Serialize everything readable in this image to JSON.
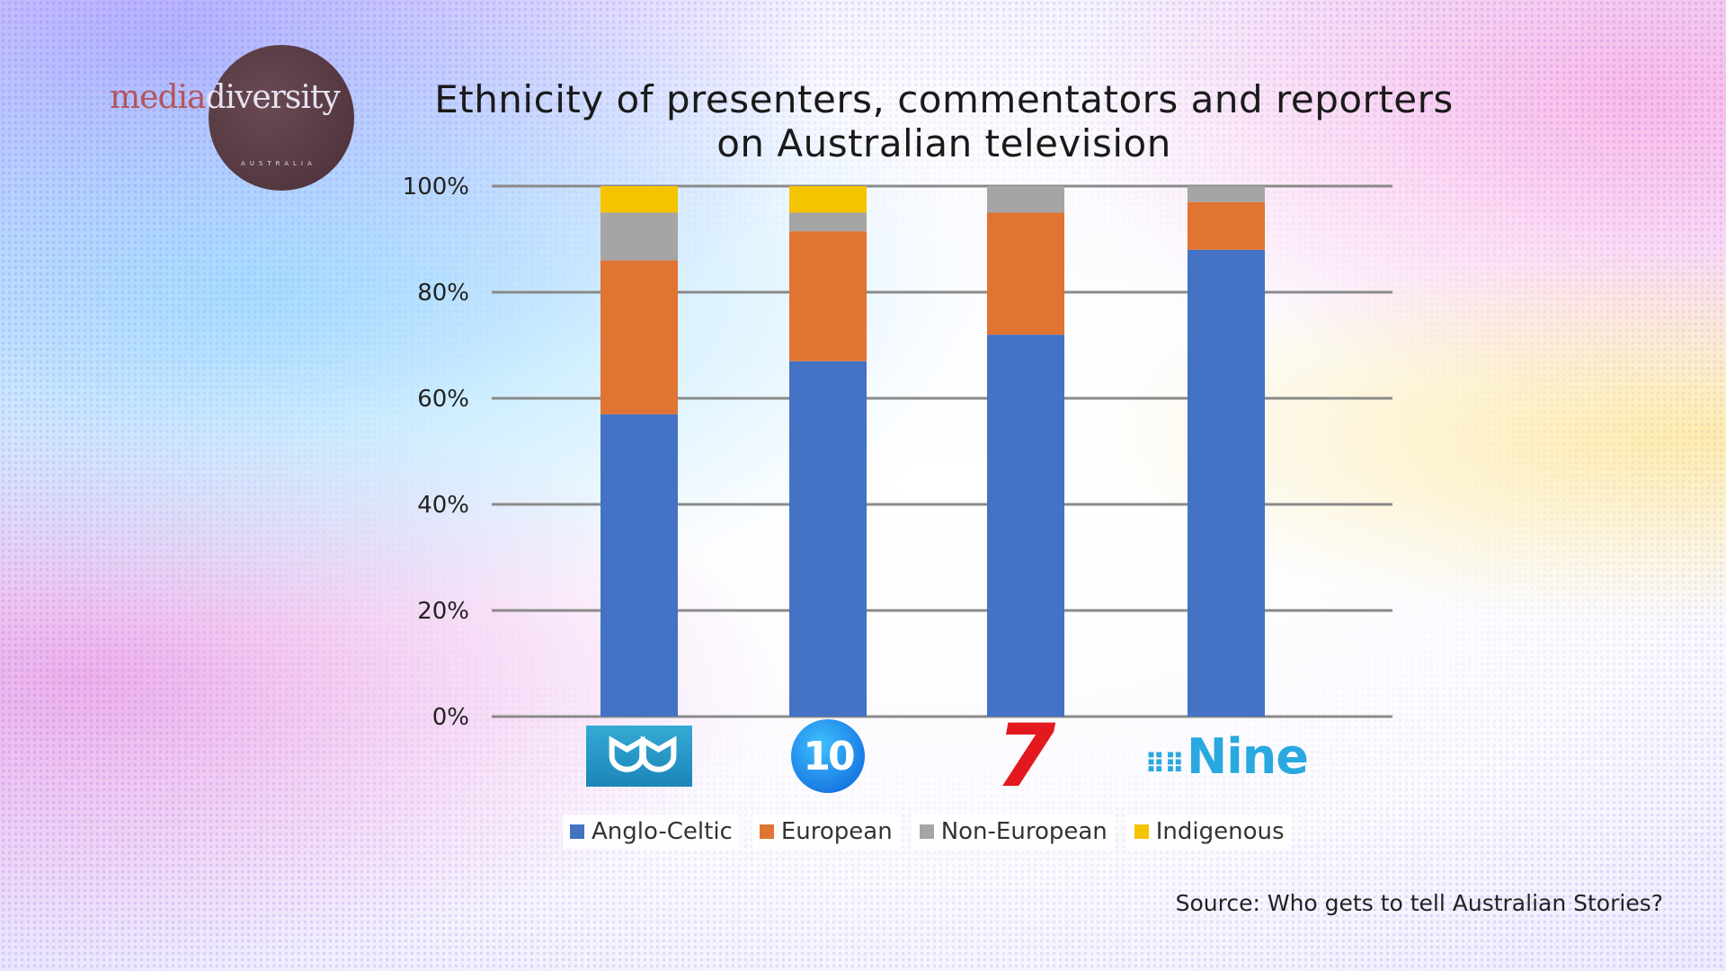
{
  "logo": {
    "text_a": "media",
    "text_b": "diversity",
    "sub": "AUSTRALIA"
  },
  "chart_data": {
    "type": "bar",
    "stacked": true,
    "title": "Ethnicity of presenters, commentators and reporters on Australian television",
    "title_lines": [
      "Ethnicity of presenters, commentators and reporters",
      "on Australian television"
    ],
    "categories": [
      "ABC",
      "10",
      "7",
      "Nine"
    ],
    "series": [
      {
        "name": "Anglo-Celtic",
        "color": "#4472c4",
        "values": [
          57,
          67,
          72,
          88
        ]
      },
      {
        "name": "European",
        "color": "#e07432",
        "values": [
          29,
          24.5,
          23,
          9
        ]
      },
      {
        "name": "Non-European",
        "color": "#a5a5a5",
        "values": [
          9,
          3.5,
          5,
          3
        ]
      },
      {
        "name": "Indigenous",
        "color": "#f5c400",
        "values": [
          5,
          5,
          0,
          0
        ]
      }
    ],
    "yticks": [
      "0%",
      "20%",
      "40%",
      "60%",
      "80%",
      "100%"
    ],
    "ylim": [
      0,
      100
    ],
    "grid": true,
    "legend": "bottom",
    "xlabel": "",
    "ylabel": ""
  },
  "source": "Source: Who gets to tell Australian Stories?"
}
